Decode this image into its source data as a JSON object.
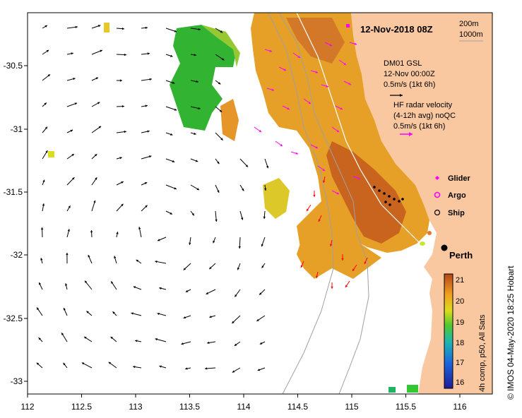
{
  "title": "12-Nov-2018 08Z",
  "depth_labels": [
    "200m",
    "1000m"
  ],
  "legend": {
    "model": {
      "name": "DM01 GSL",
      "time": "12-Nov 00:00Z",
      "scale": "0.5m/s (1kt 6h)"
    },
    "radar": {
      "name": "HF radar velocity",
      "avg": "(4-12h avg) noQC",
      "scale": "0.5m/s (1kt 6h)"
    }
  },
  "markers": {
    "glider": "Glider",
    "argo": "Argo",
    "ship": "Ship"
  },
  "city": "Perth",
  "colorbar": {
    "ticks": [
      "21",
      "20",
      "19",
      "18",
      "17",
      "16"
    ],
    "label": "4h comp, p50, All Sats"
  },
  "credit": "© IMOS 04-May-2020 18:25 Hobart",
  "x_ticks": [
    "112",
    "112.5",
    "113",
    "113.5",
    "114",
    "114.5",
    "115",
    "115.5",
    "116"
  ],
  "y_ticks": [
    "-30.5",
    "-31",
    "-31.5",
    "-32",
    "-32.5",
    "-33"
  ],
  "colors": {
    "land": "#fac8a0",
    "warm": "#c8641e",
    "mid": "#e6a028",
    "cool": "#32b432",
    "radar_arrow": "#ff00ff",
    "obs_arrow": "#ff0000"
  }
}
